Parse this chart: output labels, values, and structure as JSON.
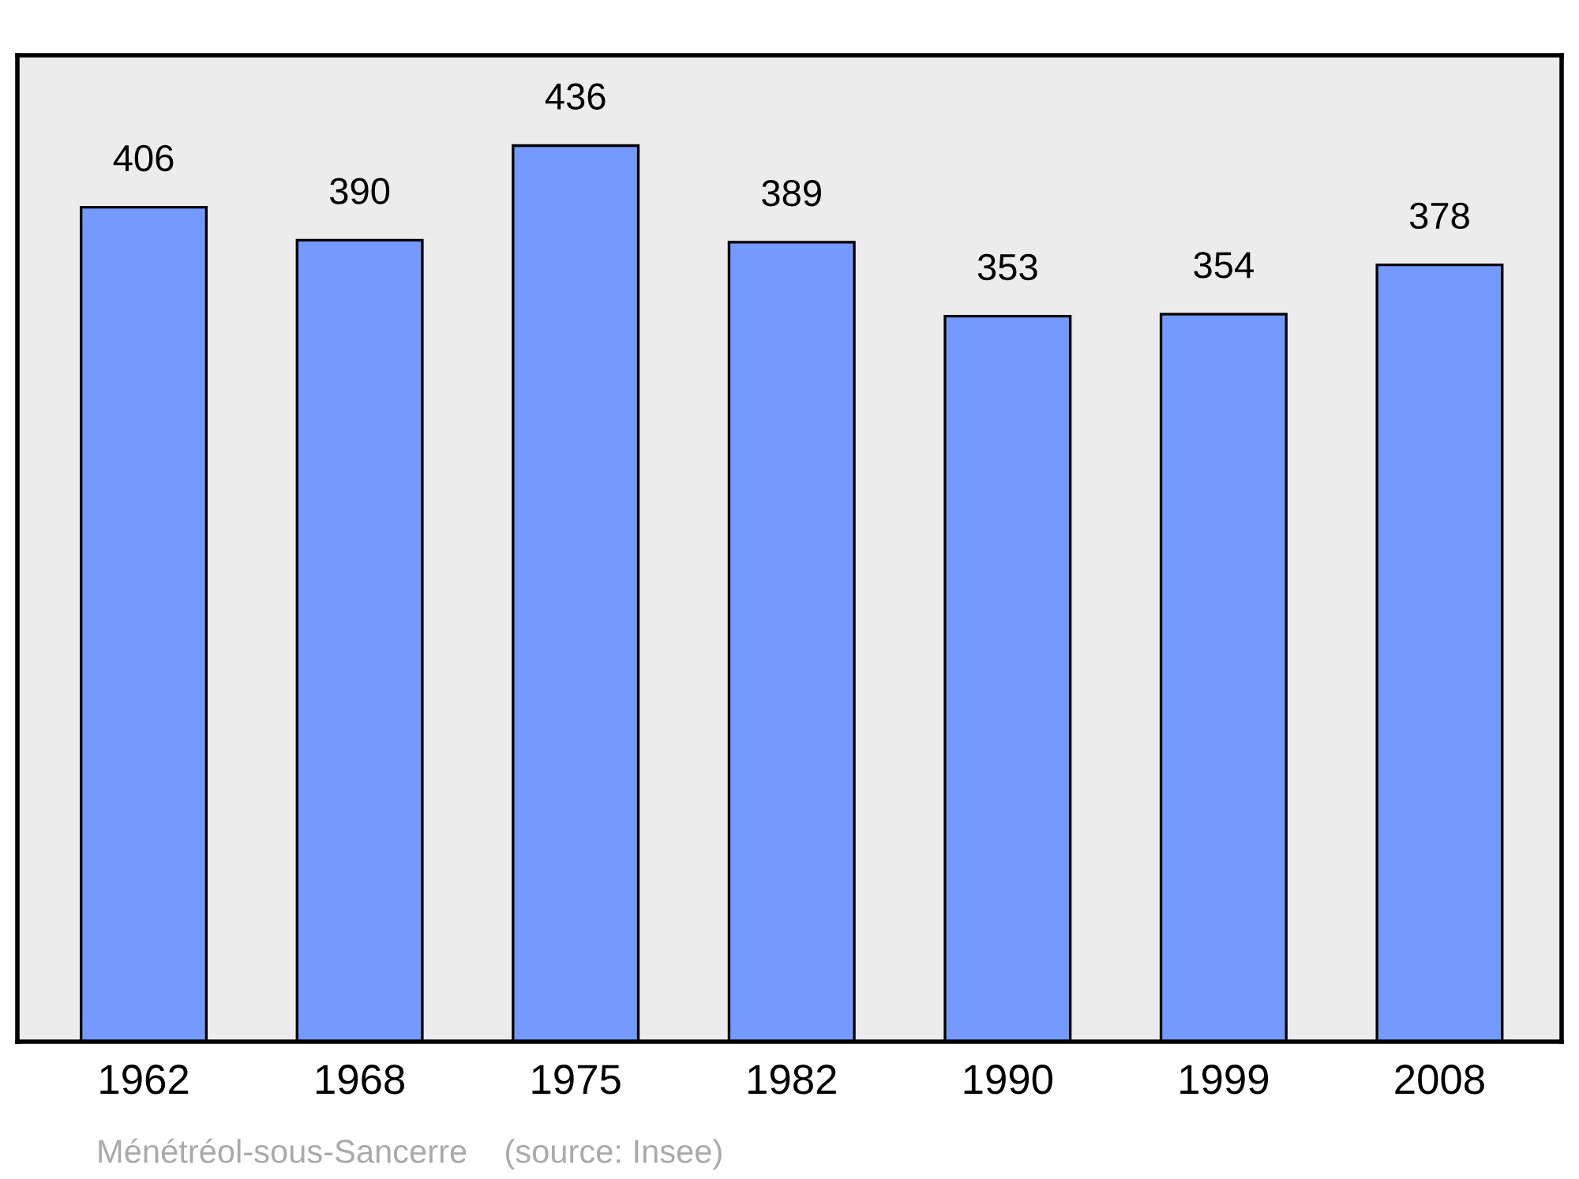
{
  "chart_data": {
    "type": "bar",
    "categories": [
      "1962",
      "1968",
      "1975",
      "1982",
      "1990",
      "1999",
      "2008"
    ],
    "values": [
      406,
      390,
      436,
      389,
      353,
      354,
      378
    ],
    "color": "#7499ff",
    "ylim": [
      0,
      480
    ],
    "data_labels": true,
    "grid": false,
    "legend": false,
    "annotations": [
      "Ménétréol-sous-Sancerre    (source: Insee)"
    ]
  }
}
